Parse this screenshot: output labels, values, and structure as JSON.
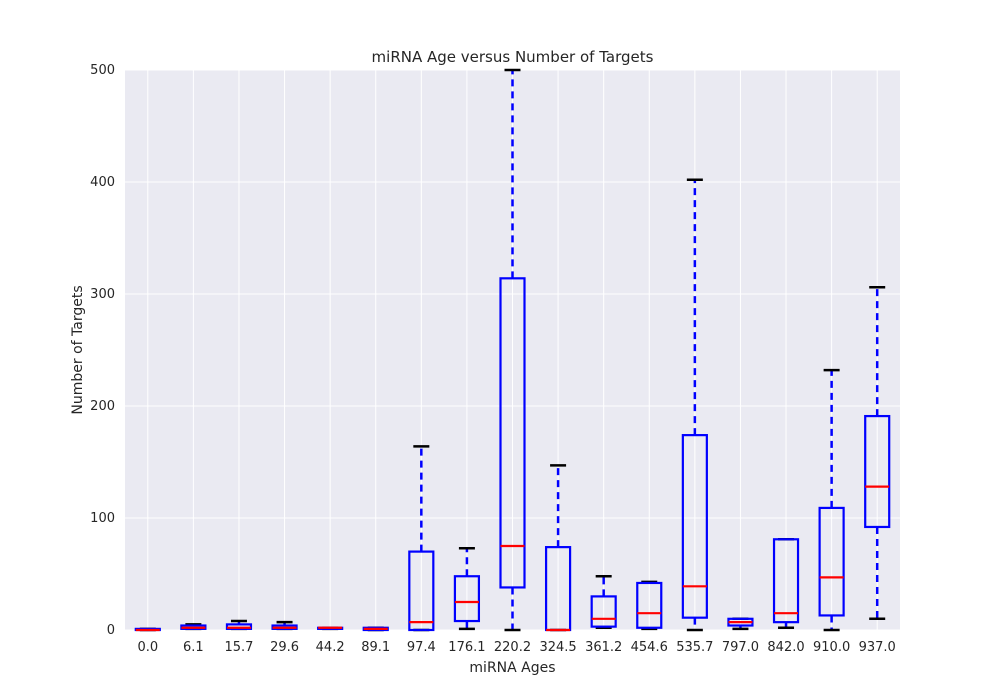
{
  "chart_data": {
    "type": "box",
    "title": "miRNA Age versus Number of Targets",
    "xlabel": "miRNA Ages",
    "ylabel": "Number of Targets",
    "ylim": [
      0,
      500
    ],
    "yticks": [
      0,
      100,
      200,
      300,
      400,
      500
    ],
    "grid": true,
    "categories": [
      "0.0",
      "6.1",
      "15.7",
      "29.6",
      "44.2",
      "89.1",
      "97.4",
      "176.1",
      "220.2",
      "324.5",
      "361.2",
      "454.6",
      "535.7",
      "797.0",
      "842.0",
      "910.0",
      "937.0"
    ],
    "boxes": [
      {
        "whisker_low": 0,
        "q1": 0,
        "median": 0,
        "q3": 1,
        "whisker_high": 1
      },
      {
        "whisker_low": 1,
        "q1": 1,
        "median": 2,
        "q3": 4,
        "whisker_high": 5
      },
      {
        "whisker_low": 1,
        "q1": 1,
        "median": 2,
        "q3": 5,
        "whisker_high": 8
      },
      {
        "whisker_low": 1,
        "q1": 1,
        "median": 2,
        "q3": 4,
        "whisker_high": 7
      },
      {
        "whisker_low": 1,
        "q1": 1,
        "median": 2,
        "q3": 2,
        "whisker_high": 2
      },
      {
        "whisker_low": 0,
        "q1": 0,
        "median": 1,
        "q3": 2,
        "whisker_high": 2
      },
      {
        "whisker_low": 0,
        "q1": 0,
        "median": 7,
        "q3": 70,
        "whisker_high": 164
      },
      {
        "whisker_low": 1,
        "q1": 8,
        "median": 25,
        "q3": 48,
        "whisker_high": 73
      },
      {
        "whisker_low": 0,
        "q1": 38,
        "median": 75,
        "q3": 314,
        "whisker_high": 500
      },
      {
        "whisker_low": 0,
        "q1": 0,
        "median": 0,
        "q3": 74,
        "whisker_high": 147
      },
      {
        "whisker_low": 2,
        "q1": 3,
        "median": 10,
        "q3": 30,
        "whisker_high": 48
      },
      {
        "whisker_low": 1,
        "q1": 2,
        "median": 15,
        "q3": 42,
        "whisker_high": 43
      },
      {
        "whisker_low": 0,
        "q1": 11,
        "median": 39,
        "q3": 174,
        "whisker_high": 402
      },
      {
        "whisker_low": 1,
        "q1": 4,
        "median": 7,
        "q3": 10,
        "whisker_high": 10
      },
      {
        "whisker_low": 2,
        "q1": 7,
        "median": 15,
        "q3": 81,
        "whisker_high": 81
      },
      {
        "whisker_low": 0,
        "q1": 13,
        "median": 47,
        "q3": 109,
        "whisker_high": 232
      },
      {
        "whisker_low": 10,
        "q1": 92,
        "median": 128,
        "q3": 191,
        "whisker_high": 306
      }
    ],
    "colors": {
      "plot_background": "#eaeaf2",
      "grid": "#ffffff",
      "box": "#0000ff",
      "whisker": "#0000ff",
      "median": "#ff0000",
      "cap": "#000000"
    }
  }
}
